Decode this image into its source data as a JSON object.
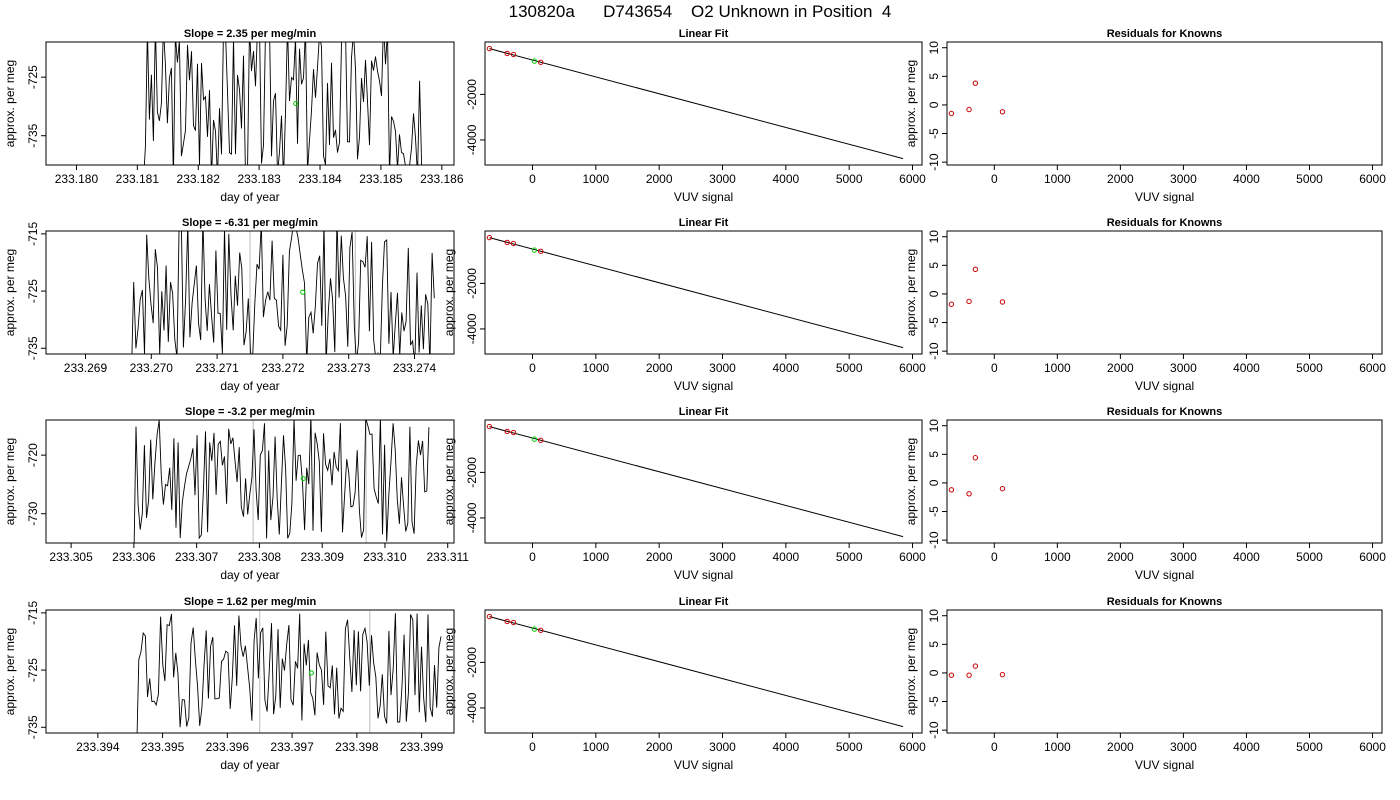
{
  "figure": {
    "title": "130820a      D743654    O2 Unknown in Position  4"
  },
  "chart_data": [
    {
      "type": "line",
      "panel": "time",
      "row": 1,
      "title": "Slope =  2.35  per meg/min",
      "xlabel": "day of year",
      "ylabel": "approx. per meg",
      "xlim": [
        233.1795,
        233.1862
      ],
      "ylim": [
        -740,
        -719
      ],
      "xticks": [
        "233.180",
        "233.181",
        "233.182",
        "233.183",
        "233.184",
        "233.185",
        "233.186"
      ],
      "yticks": [
        "-725",
        "-735"
      ],
      "x_start": 233.1811,
      "x_end": 233.1857,
      "seed": 3,
      "centre": -729,
      "amp": 14,
      "highlight": {
        "x": 233.1836,
        "y": -729.5
      },
      "vlines": []
    },
    {
      "type": "line",
      "panel": "fit",
      "row": 1,
      "title": "Linear Fit",
      "xlabel": "VUV signal",
      "ylabel": "",
      "xlim": [
        -750,
        6150
      ],
      "ylim": [
        -5100,
        300
      ],
      "xticks": [
        "0",
        "1000",
        "2000",
        "3000",
        "4000",
        "5000",
        "6000"
      ],
      "yticks": [
        "-2000",
        "-4000"
      ],
      "line": [
        [
          -680,
          10
        ],
        [
          5850,
          -4820
        ]
      ],
      "knowns": [
        [
          -680,
          10
        ],
        [
          -400,
          -200
        ],
        [
          -300,
          -250
        ],
        [
          130,
          -590
        ]
      ],
      "unknown": [
        [
          30,
          -540
        ]
      ]
    },
    {
      "type": "scatter",
      "panel": "resid",
      "row": 1,
      "title": "Residuals for Knowns",
      "xlabel": "VUV signal",
      "ylabel": "approx. per meg",
      "xlim": [
        -750,
        6150
      ],
      "ylim": [
        -10.5,
        11
      ],
      "xticks": [
        "0",
        "1000",
        "2000",
        "3000",
        "4000",
        "5000",
        "6000"
      ],
      "yticks": [
        "-10",
        "-5",
        "0",
        "5",
        "10"
      ],
      "points": [
        [
          -680,
          -1.5
        ],
        [
          -400,
          -0.8
        ],
        [
          -300,
          3.8
        ],
        [
          130,
          -1.2
        ]
      ]
    },
    {
      "type": "line",
      "panel": "time",
      "row": 2,
      "title": "Slope =  -6.31  per meg/min",
      "xlabel": "day of year",
      "ylabel": "approx. per meg",
      "xlim": [
        233.2684,
        233.2746
      ],
      "ylim": [
        -736,
        -714.5
      ],
      "xticks": [
        "233.269",
        "233.270",
        "233.271",
        "233.272",
        "233.273",
        "233.274"
      ],
      "yticks": [
        "-715",
        "-725",
        "-735"
      ],
      "x_start": 233.2697,
      "x_end": 233.2743,
      "seed": 7,
      "centre": -725,
      "amp": 13,
      "highlight": {
        "x": 233.2723,
        "y": -725.2
      },
      "vlines": [
        233.2715,
        233.2731
      ]
    },
    {
      "type": "line",
      "panel": "fit",
      "row": 2,
      "title": "Linear Fit",
      "xlabel": "VUV signal",
      "ylabel": "approx. per meg",
      "xlim": [
        -750,
        6150
      ],
      "ylim": [
        -5100,
        300
      ],
      "xticks": [
        "0",
        "1000",
        "2000",
        "3000",
        "4000",
        "5000",
        "6000"
      ],
      "yticks": [
        "-2000",
        "-4000"
      ],
      "line": [
        [
          -680,
          10
        ],
        [
          5850,
          -4820
        ]
      ],
      "knowns": [
        [
          -680,
          10
        ],
        [
          -400,
          -200
        ],
        [
          -300,
          -250
        ],
        [
          130,
          -590
        ]
      ],
      "unknown": [
        [
          30,
          -540
        ]
      ]
    },
    {
      "type": "scatter",
      "panel": "resid",
      "row": 2,
      "title": "Residuals for Knowns",
      "xlabel": "VUV signal",
      "ylabel": "approx. per meg",
      "xlim": [
        -750,
        6150
      ],
      "ylim": [
        -10.5,
        11
      ],
      "xticks": [
        "0",
        "1000",
        "2000",
        "3000",
        "4000",
        "5000",
        "6000"
      ],
      "yticks": [
        "-10",
        "-5",
        "0",
        "5",
        "10"
      ],
      "points": [
        [
          -680,
          -1.8
        ],
        [
          -400,
          -1.3
        ],
        [
          -300,
          4.3
        ],
        [
          130,
          -1.4
        ]
      ]
    },
    {
      "type": "line",
      "panel": "time",
      "row": 3,
      "title": "Slope =  -3.2  per meg/min",
      "xlabel": "day of year",
      "ylabel": "approx. per meg",
      "xlim": [
        233.3046,
        233.3111
      ],
      "ylim": [
        -735,
        -714
      ],
      "xticks": [
        "233.305",
        "233.306",
        "233.307",
        "233.308",
        "233.309",
        "233.310",
        "233.311"
      ],
      "yticks": [
        "-720",
        "-730"
      ],
      "x_start": 233.306,
      "x_end": 233.3107,
      "seed": 11,
      "centre": -724,
      "amp": 11,
      "highlight": {
        "x": 233.3087,
        "y": -724
      },
      "vlines": [
        233.3079,
        233.3097
      ]
    },
    {
      "type": "line",
      "panel": "fit",
      "row": 3,
      "title": "Linear Fit",
      "xlabel": "VUV signal",
      "ylabel": "approx. per meg",
      "xlim": [
        -750,
        6150
      ],
      "ylim": [
        -5100,
        300
      ],
      "xticks": [
        "0",
        "1000",
        "2000",
        "3000",
        "4000",
        "5000",
        "6000"
      ],
      "yticks": [
        "-2000",
        "-4000"
      ],
      "line": [
        [
          -680,
          10
        ],
        [
          5850,
          -4820
        ]
      ],
      "knowns": [
        [
          -680,
          10
        ],
        [
          -400,
          -200
        ],
        [
          -300,
          -250
        ],
        [
          130,
          -590
        ]
      ],
      "unknown": [
        [
          30,
          -540
        ]
      ]
    },
    {
      "type": "scatter",
      "panel": "resid",
      "row": 3,
      "title": "Residuals for Knowns",
      "xlabel": "VUV signal",
      "ylabel": "approx. per meg",
      "xlim": [
        -750,
        6150
      ],
      "ylim": [
        -10.5,
        11
      ],
      "xticks": [
        "0",
        "1000",
        "2000",
        "3000",
        "4000",
        "5000",
        "6000"
      ],
      "yticks": [
        "-10",
        "-5",
        "0",
        "5",
        "10"
      ],
      "points": [
        [
          -680,
          -1.2
        ],
        [
          -400,
          -1.9
        ],
        [
          -300,
          4.4
        ],
        [
          130,
          -1.0
        ]
      ]
    },
    {
      "type": "line",
      "panel": "time",
      "row": 4,
      "title": "Slope =  1.62  per meg/min",
      "xlabel": "day of year",
      "ylabel": "approx. per meg",
      "xlim": [
        233.3932,
        233.3995
      ],
      "ylim": [
        -736,
        -714.5
      ],
      "xticks": [
        "233.394",
        "233.395",
        "233.396",
        "233.397",
        "233.398",
        "233.399"
      ],
      "yticks": [
        "-715",
        "-725",
        "-735"
      ],
      "x_start": 233.3946,
      "x_end": 233.3993,
      "seed": 19,
      "centre": -725,
      "amp": 10,
      "highlight": {
        "x": 233.3973,
        "y": -725.5
      },
      "vlines": [
        233.3965,
        233.3982
      ]
    },
    {
      "type": "line",
      "panel": "fit",
      "row": 4,
      "title": "Linear Fit",
      "xlabel": "VUV signal",
      "ylabel": "approx. per meg",
      "xlim": [
        -750,
        6150
      ],
      "ylim": [
        -5100,
        300
      ],
      "xticks": [
        "0",
        "1000",
        "2000",
        "3000",
        "4000",
        "5000",
        "6000"
      ],
      "yticks": [
        "-2000",
        "-4000"
      ],
      "line": [
        [
          -680,
          10
        ],
        [
          5850,
          -4820
        ]
      ],
      "knowns": [
        [
          -680,
          10
        ],
        [
          -400,
          -200
        ],
        [
          -300,
          -250
        ],
        [
          130,
          -590
        ]
      ],
      "unknown": [
        [
          30,
          -540
        ]
      ]
    },
    {
      "type": "scatter",
      "panel": "resid",
      "row": 4,
      "title": "Residuals for Knowns",
      "xlabel": "VUV signal",
      "ylabel": "approx. per meg",
      "xlim": [
        -750,
        6150
      ],
      "ylim": [
        -10.5,
        11
      ],
      "xticks": [
        "0",
        "1000",
        "2000",
        "3000",
        "4000",
        "5000",
        "6000"
      ],
      "yticks": [
        "-10",
        "-5",
        "0",
        "5",
        "10"
      ],
      "points": [
        [
          -680,
          -0.4
        ],
        [
          -400,
          -0.4
        ],
        [
          -300,
          1.2
        ],
        [
          130,
          -0.3
        ]
      ]
    }
  ],
  "colors": {
    "knowns": "#cc0000",
    "unknown": "#00cc00",
    "line": "#000000",
    "vline": "#bbbbbb"
  }
}
